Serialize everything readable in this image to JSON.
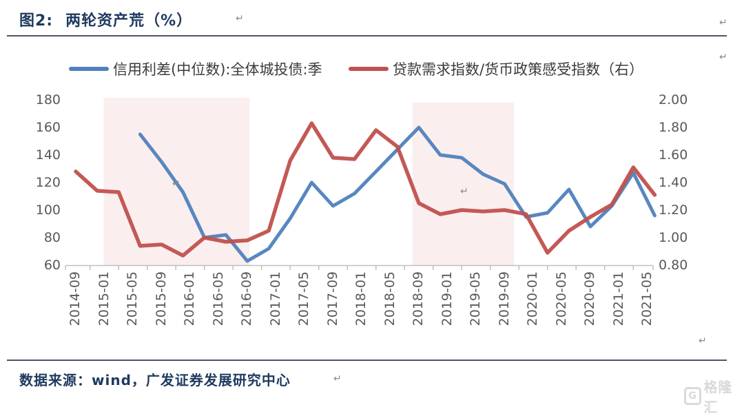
{
  "title": {
    "figure_label": "图2:",
    "text": "两轮资产荒（%）"
  },
  "legend": {
    "items": [
      {
        "label": "信用利差(中位数):全体城投债:季",
        "color": "#4f81bd"
      },
      {
        "label": "贷款需求指数/货币政策感受指数（右）",
        "color": "#c0504d"
      }
    ]
  },
  "source": {
    "prefix": "数据来源：",
    "text": "wind，广发证券发展研究中心"
  },
  "watermark": {
    "icon_letter": "G",
    "text": "格隆汇"
  },
  "paragraph_mark": "↵",
  "chart_data": {
    "type": "line",
    "title": "两轮资产荒（%）",
    "x_unit": "months since 2014-09",
    "x_tick_labels": [
      "2014-09",
      "2015-01",
      "2015-05",
      "2015-09",
      "2016-01",
      "2016-05",
      "2016-09",
      "2017-01",
      "2017-05",
      "2017-09",
      "2018-01",
      "2018-05",
      "2018-09",
      "2019-01",
      "2019-05",
      "2019-09",
      "2020-01",
      "2020-05",
      "2020-09",
      "2021-01",
      "2021-05"
    ],
    "x_tick_interval_months": 4,
    "left_axis": {
      "ticks": [
        180,
        160,
        140,
        120,
        100,
        80,
        60
      ],
      "min": 60,
      "max": 180
    },
    "right_axis": {
      "ticks": [
        "2.00",
        "1.80",
        "1.60",
        "1.40",
        "1.20",
        "1.00",
        "0.80"
      ],
      "min": 0.8,
      "max": 2.0
    },
    "grid": "off",
    "legend_position": "top",
    "axis_line_color": "#bfbfbf",
    "series": [
      {
        "name": "信用利差(中位数):全体城投债:季",
        "axis": "left",
        "color": "#4f81bd",
        "x": [
          9,
          12,
          15,
          18,
          21,
          24,
          27,
          30,
          33,
          36,
          39,
          42,
          45,
          48,
          51,
          54,
          57,
          60,
          63,
          66,
          69,
          72,
          75,
          78,
          81
        ],
        "dates": [
          "2015-06",
          "2015-09",
          "2015-12",
          "2016-03",
          "2016-06",
          "2016-09",
          "2016-12",
          "2017-03",
          "2017-06",
          "2017-09",
          "2017-12",
          "2018-03",
          "2018-06",
          "2018-09",
          "2018-12",
          "2019-03",
          "2019-06",
          "2019-09",
          "2019-12",
          "2020-03",
          "2020-06",
          "2020-09",
          "2020-12",
          "2021-03",
          "2021-06"
        ],
        "values": [
          155,
          135,
          113,
          80,
          82,
          63,
          72,
          94,
          120,
          103,
          112,
          128,
          144,
          160,
          140,
          138,
          126,
          119,
          95,
          98,
          115,
          88,
          103,
          127,
          96
        ]
      },
      {
        "name": "贷款需求指数/货币政策感受指数（右）",
        "axis": "right",
        "color": "#c0504d",
        "x": [
          0,
          3,
          6,
          9,
          12,
          15,
          18,
          21,
          24,
          27,
          30,
          33,
          36,
          39,
          42,
          45,
          48,
          51,
          54,
          57,
          60,
          63,
          66,
          69,
          72,
          75,
          78,
          81
        ],
        "dates": [
          "2014-09",
          "2014-12",
          "2015-03",
          "2015-06",
          "2015-09",
          "2015-12",
          "2016-03",
          "2016-06",
          "2016-09",
          "2016-12",
          "2017-03",
          "2017-06",
          "2017-09",
          "2017-12",
          "2018-03",
          "2018-06",
          "2018-09",
          "2018-12",
          "2019-03",
          "2019-06",
          "2019-09",
          "2019-12",
          "2020-03",
          "2020-06",
          "2020-09",
          "2020-12",
          "2021-03",
          "2021-06"
        ],
        "values": [
          1.48,
          1.34,
          1.33,
          0.94,
          0.95,
          0.87,
          1.0,
          0.97,
          0.98,
          1.05,
          1.56,
          1.83,
          1.58,
          1.57,
          1.78,
          1.66,
          1.25,
          1.17,
          1.2,
          1.19,
          1.2,
          1.17,
          0.89,
          1.05,
          1.15,
          1.24,
          1.51,
          1.31
        ]
      }
    ],
    "highlight_regions": [
      {
        "x_start_month": 3.9,
        "x_end_month": 24.3,
        "top_value": 181.5,
        "color": "#fbeeee"
      },
      {
        "x_start_month": 47.1,
        "x_end_month": 61.3,
        "top_value": 178,
        "color": "#fbeeee"
      }
    ]
  }
}
